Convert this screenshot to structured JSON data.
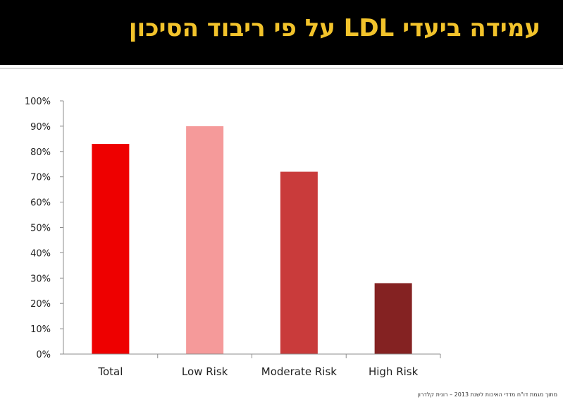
{
  "slide": {
    "title": "עמידה ביעדי LDL על פי ריבוד הסיכון",
    "footnote": "מתוך מגמת דו\"ח מדדי האיכות לשנת 2013 – רונית קלדרון"
  },
  "colors": {
    "header_bg": "#000000",
    "title": "#f2c32b"
  },
  "chart_data": {
    "type": "bar",
    "categories": [
      "Total",
      "Low Risk",
      "Moderate Risk",
      "High Risk"
    ],
    "values": [
      83,
      90,
      72,
      28
    ],
    "colors": [
      "#ee0000",
      "#f59a9a",
      "#c93b3b",
      "#842222"
    ],
    "ylim": [
      0,
      100
    ],
    "yticks": [
      "0%",
      "10%",
      "20%",
      "30%",
      "40%",
      "50%",
      "60%",
      "70%",
      "80%",
      "90%",
      "100%"
    ],
    "grid": false
  }
}
